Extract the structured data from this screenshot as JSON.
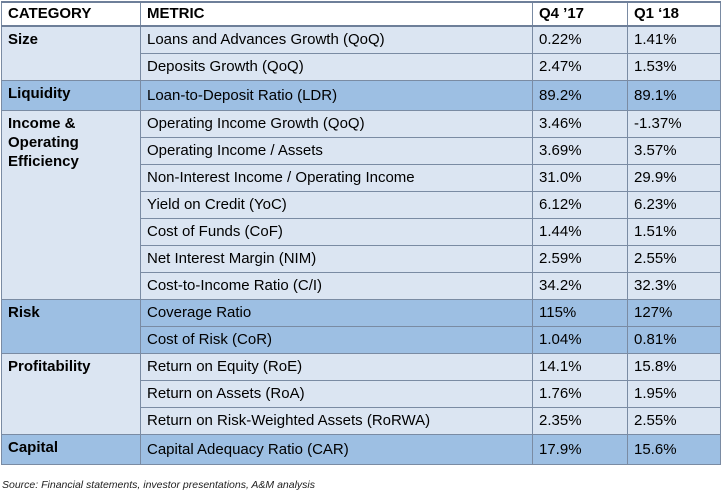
{
  "header": {
    "category": "CATEGORY",
    "metric": "METRIC",
    "q4": "Q4 ’17",
    "q1": "Q1 ‘18"
  },
  "groups": [
    {
      "category": "Size",
      "shade": "light",
      "rows": [
        {
          "metric": "Loans and Advances Growth (QoQ)",
          "q4": "0.22%",
          "q1": "1.41%"
        },
        {
          "metric": "Deposits Growth (QoQ)",
          "q4": "2.47%",
          "q1": "1.53%"
        }
      ]
    },
    {
      "category": "Liquidity",
      "shade": "dark",
      "rows": [
        {
          "metric": "Loan-to-Deposit Ratio (LDR)",
          "q4": "89.2%",
          "q1": "89.1%"
        }
      ]
    },
    {
      "category": "Income & Operating Efficiency",
      "shade": "light",
      "rows": [
        {
          "metric": "Operating Income Growth (QoQ)",
          "q4": "3.46%",
          "q1": "-1.37%"
        },
        {
          "metric": "Operating Income / Assets",
          "q4": "3.69%",
          "q1": "3.57%"
        },
        {
          "metric": "Non-Interest Income / Operating Income",
          "q4": "31.0%",
          "q1": "29.9%"
        },
        {
          "metric": "Yield on Credit (YoC)",
          "q4": "6.12%",
          "q1": "6.23%"
        },
        {
          "metric": "Cost of Funds (CoF)",
          "q4": "1.44%",
          "q1": "1.51%"
        },
        {
          "metric": "Net Interest Margin (NIM)",
          "q4": "2.59%",
          "q1": "2.55%"
        },
        {
          "metric": "Cost-to-Income Ratio (C/I)",
          "q4": "34.2%",
          "q1": "32.3%"
        }
      ]
    },
    {
      "category": "Risk",
      "shade": "dark",
      "rows": [
        {
          "metric": "Coverage Ratio",
          "q4": "115%",
          "q1": "127%"
        },
        {
          "metric": "Cost of Risk (CoR)",
          "q4": "1.04%",
          "q1": "0.81%"
        }
      ]
    },
    {
      "category": "Profitability",
      "shade": "light",
      "rows": [
        {
          "metric": "Return on Equity (RoE)",
          "q4": "14.1%",
          "q1": "15.8%"
        },
        {
          "metric": "Return on Assets (RoA)",
          "q4": "1.76%",
          "q1": "1.95%"
        },
        {
          "metric": "Return on Risk-Weighted Assets (RoRWA)",
          "q4": "2.35%",
          "q1": "2.55%"
        }
      ]
    },
    {
      "category": "Capital",
      "shade": "dark",
      "rows": [
        {
          "metric": "Capital Adequacy Ratio (CAR)",
          "q4": "17.9%",
          "q1": "15.6%"
        }
      ]
    }
  ],
  "source": "Source: Financial statements, investor presentations, A&M analysis",
  "colors": {
    "light_row": "#dbe5f2",
    "dark_row": "#9dbfe3",
    "border": "#7a8ba3"
  }
}
